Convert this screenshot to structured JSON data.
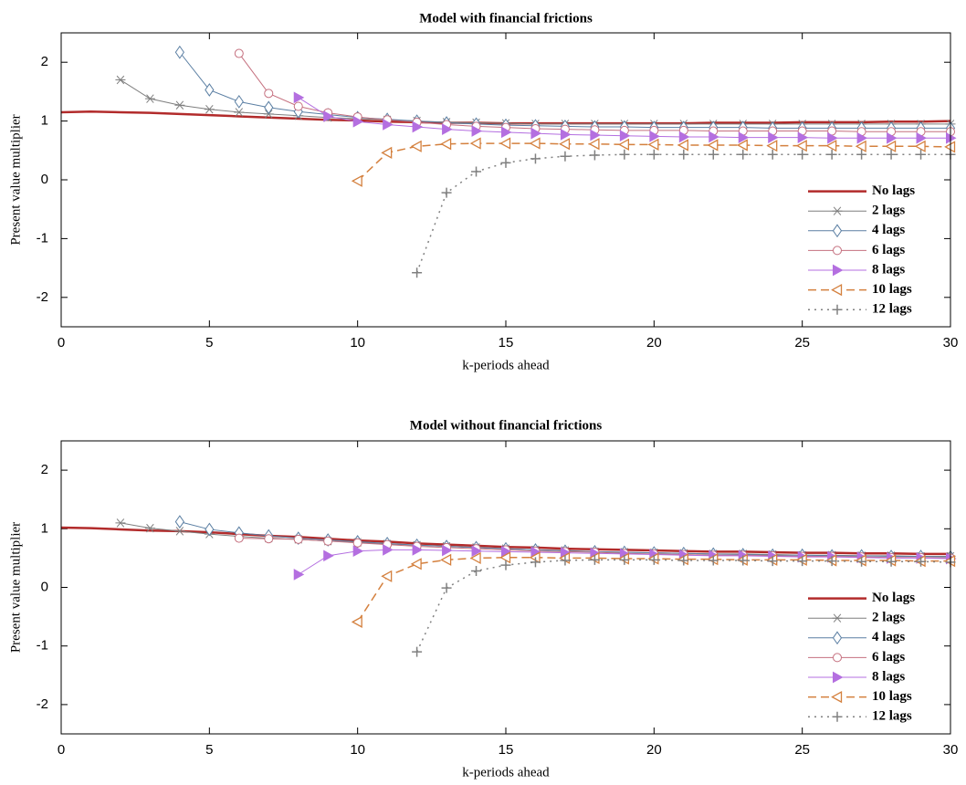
{
  "chart_data": [
    {
      "type": "line",
      "title": "Model with financial frictions",
      "x_label": "k-periods ahead",
      "y_label": "Present value multiplier",
      "x": [
        0,
        1,
        2,
        3,
        4,
        5,
        6,
        7,
        8,
        9,
        10,
        11,
        12,
        13,
        14,
        15,
        16,
        17,
        18,
        19,
        20,
        21,
        22,
        23,
        24,
        25,
        26,
        27,
        28,
        29,
        30
      ],
      "xlim": [
        0,
        30
      ],
      "xticks": [
        0,
        5,
        10,
        15,
        20,
        25,
        30
      ],
      "ylim": [
        -2.5,
        2.5
      ],
      "yticks": [
        -2,
        -1,
        0,
        1,
        2
      ],
      "legend": "lower right",
      "series": [
        {
          "name": "No lags",
          "color": "#b22b2b",
          "width": 2.5,
          "line_style": "solid",
          "marker": "none",
          "values": [
            1.15,
            1.16,
            1.15,
            1.14,
            1.12,
            1.1,
            1.08,
            1.06,
            1.04,
            1.02,
            1.01,
            0.99,
            0.98,
            0.97,
            0.97,
            0.96,
            0.96,
            0.96,
            0.96,
            0.96,
            0.96,
            0.96,
            0.97,
            0.97,
            0.97,
            0.98,
            0.98,
            0.98,
            0.99,
            0.99,
            1.0
          ]
        },
        {
          "name": "2 lags",
          "color": "#7f7f7f",
          "width": 1,
          "line_style": "solid",
          "marker": "star",
          "values": [
            null,
            null,
            1.7,
            1.38,
            1.27,
            1.2,
            1.15,
            1.12,
            1.09,
            1.06,
            1.04,
            1.02,
            1.0,
            0.98,
            0.97,
            0.96,
            0.95,
            0.95,
            0.95,
            0.95,
            0.95,
            0.95,
            0.95,
            0.95,
            0.95,
            0.95,
            0.95,
            0.95,
            0.95,
            0.95,
            0.95
          ]
        },
        {
          "name": "4 lags",
          "color": "#5b7fa3",
          "width": 1,
          "line_style": "solid",
          "marker": "diamond",
          "values": [
            null,
            null,
            null,
            null,
            2.17,
            1.53,
            1.33,
            1.23,
            1.16,
            1.11,
            1.06,
            1.03,
            1.0,
            0.97,
            0.95,
            0.93,
            0.92,
            0.91,
            0.9,
            0.9,
            0.89,
            0.89,
            0.89,
            0.89,
            0.88,
            0.88,
            0.88,
            0.88,
            0.88,
            0.88,
            0.88
          ]
        },
        {
          "name": "6 lags",
          "color": "#c5707f",
          "width": 1,
          "line_style": "solid",
          "marker": "circle",
          "values": [
            null,
            null,
            null,
            null,
            null,
            null,
            2.15,
            1.47,
            1.25,
            1.14,
            1.07,
            1.02,
            0.98,
            0.94,
            0.91,
            0.89,
            0.87,
            0.86,
            0.85,
            0.84,
            0.84,
            0.84,
            0.83,
            0.83,
            0.83,
            0.83,
            0.83,
            0.82,
            0.82,
            0.82,
            0.82
          ]
        },
        {
          "name": "8 lags",
          "color": "#b46fe0",
          "width": 1,
          "line_style": "solid",
          "marker": "triangle-right",
          "values": [
            null,
            null,
            null,
            null,
            null,
            null,
            null,
            null,
            1.4,
            1.08,
            0.99,
            0.94,
            0.9,
            0.86,
            0.83,
            0.81,
            0.79,
            0.77,
            0.76,
            0.75,
            0.74,
            0.73,
            0.73,
            0.72,
            0.72,
            0.72,
            0.71,
            0.71,
            0.71,
            0.71,
            0.71
          ]
        },
        {
          "name": "10 lags",
          "color": "#d4803e",
          "width": 1.5,
          "line_style": "dashed",
          "marker": "triangle-left",
          "values": [
            null,
            null,
            null,
            null,
            null,
            null,
            null,
            null,
            null,
            null,
            -0.02,
            0.46,
            0.57,
            0.61,
            0.62,
            0.62,
            0.62,
            0.61,
            0.61,
            0.6,
            0.6,
            0.59,
            0.59,
            0.59,
            0.58,
            0.58,
            0.58,
            0.57,
            0.57,
            0.57,
            0.56
          ]
        },
        {
          "name": "12 lags",
          "color": "#808080",
          "width": 1.5,
          "line_style": "dotted",
          "marker": "plus",
          "values": [
            null,
            null,
            null,
            null,
            null,
            null,
            null,
            null,
            null,
            null,
            null,
            null,
            -1.58,
            -0.22,
            0.14,
            0.29,
            0.36,
            0.4,
            0.42,
            0.43,
            0.43,
            0.43,
            0.43,
            0.43,
            0.43,
            0.43,
            0.43,
            0.43,
            0.43,
            0.43,
            0.43
          ]
        }
      ]
    },
    {
      "type": "line",
      "title": "Model without financial frictions",
      "x_label": "k-periods ahead",
      "y_label": "Present value multiplier",
      "x": [
        0,
        1,
        2,
        3,
        4,
        5,
        6,
        7,
        8,
        9,
        10,
        11,
        12,
        13,
        14,
        15,
        16,
        17,
        18,
        19,
        20,
        21,
        22,
        23,
        24,
        25,
        26,
        27,
        28,
        29,
        30
      ],
      "xlim": [
        0,
        30
      ],
      "xticks": [
        0,
        5,
        10,
        15,
        20,
        25,
        30
      ],
      "ylim": [
        -2.5,
        2.5
      ],
      "yticks": [
        -2,
        -1,
        0,
        1,
        2
      ],
      "legend": "lower right",
      "series": [
        {
          "name": "No lags",
          "color": "#b22b2b",
          "width": 2.5,
          "line_style": "solid",
          "marker": "none",
          "values": [
            1.02,
            1.01,
            0.99,
            0.97,
            0.96,
            0.94,
            0.91,
            0.88,
            0.86,
            0.83,
            0.8,
            0.78,
            0.75,
            0.73,
            0.71,
            0.69,
            0.68,
            0.66,
            0.65,
            0.64,
            0.63,
            0.62,
            0.61,
            0.61,
            0.6,
            0.59,
            0.59,
            0.58,
            0.58,
            0.57,
            0.57
          ]
        },
        {
          "name": "2 lags",
          "color": "#7f7f7f",
          "width": 1,
          "line_style": "solid",
          "marker": "star",
          "values": [
            null,
            null,
            1.1,
            1.01,
            0.96,
            0.91,
            0.87,
            0.84,
            0.82,
            0.79,
            0.77,
            0.74,
            0.72,
            0.7,
            0.68,
            0.66,
            0.64,
            0.63,
            0.61,
            0.6,
            0.59,
            0.58,
            0.57,
            0.57,
            0.56,
            0.55,
            0.55,
            0.54,
            0.54,
            0.53,
            0.53
          ]
        },
        {
          "name": "4 lags",
          "color": "#5b7fa3",
          "width": 1,
          "line_style": "solid",
          "marker": "diamond",
          "values": [
            null,
            null,
            null,
            null,
            1.12,
            0.99,
            0.93,
            0.88,
            0.84,
            0.81,
            0.78,
            0.75,
            0.72,
            0.7,
            0.68,
            0.66,
            0.64,
            0.62,
            0.61,
            0.6,
            0.59,
            0.58,
            0.57,
            0.56,
            0.55,
            0.55,
            0.54,
            0.54,
            0.53,
            0.53,
            0.52
          ]
        },
        {
          "name": "6 lags",
          "color": "#c5707f",
          "width": 1,
          "line_style": "solid",
          "marker": "circle",
          "values": [
            null,
            null,
            null,
            null,
            null,
            null,
            0.84,
            0.83,
            0.82,
            0.79,
            0.76,
            0.73,
            0.7,
            0.68,
            0.66,
            0.64,
            0.62,
            0.61,
            0.6,
            0.58,
            0.57,
            0.56,
            0.55,
            0.55,
            0.54,
            0.53,
            0.53,
            0.52,
            0.51,
            0.51,
            0.5
          ]
        },
        {
          "name": "8 lags",
          "color": "#b46fe0",
          "width": 1,
          "line_style": "solid",
          "marker": "triangle-right",
          "values": [
            null,
            null,
            null,
            null,
            null,
            null,
            null,
            null,
            0.22,
            0.54,
            0.62,
            0.64,
            0.64,
            0.63,
            0.62,
            0.61,
            0.6,
            0.59,
            0.58,
            0.57,
            0.56,
            0.55,
            0.54,
            0.54,
            0.53,
            0.52,
            0.52,
            0.51,
            0.5,
            0.5,
            0.49
          ]
        },
        {
          "name": "10 lags",
          "color": "#d4803e",
          "width": 1.5,
          "line_style": "dashed",
          "marker": "triangle-left",
          "values": [
            null,
            null,
            null,
            null,
            null,
            null,
            null,
            null,
            null,
            null,
            -0.59,
            0.19,
            0.4,
            0.47,
            0.5,
            0.51,
            0.51,
            0.5,
            0.5,
            0.49,
            0.49,
            0.48,
            0.48,
            0.47,
            0.47,
            0.47,
            0.46,
            0.46,
            0.46,
            0.45,
            0.45
          ]
        },
        {
          "name": "12 lags",
          "color": "#808080",
          "width": 1.5,
          "line_style": "dotted",
          "marker": "plus",
          "values": [
            null,
            null,
            null,
            null,
            null,
            null,
            null,
            null,
            null,
            null,
            null,
            null,
            -1.1,
            -0.01,
            0.28,
            0.38,
            0.43,
            0.46,
            0.47,
            0.47,
            0.47,
            0.46,
            0.46,
            0.46,
            0.45,
            0.45,
            0.45,
            0.44,
            0.44,
            0.44,
            0.43
          ]
        }
      ]
    }
  ]
}
